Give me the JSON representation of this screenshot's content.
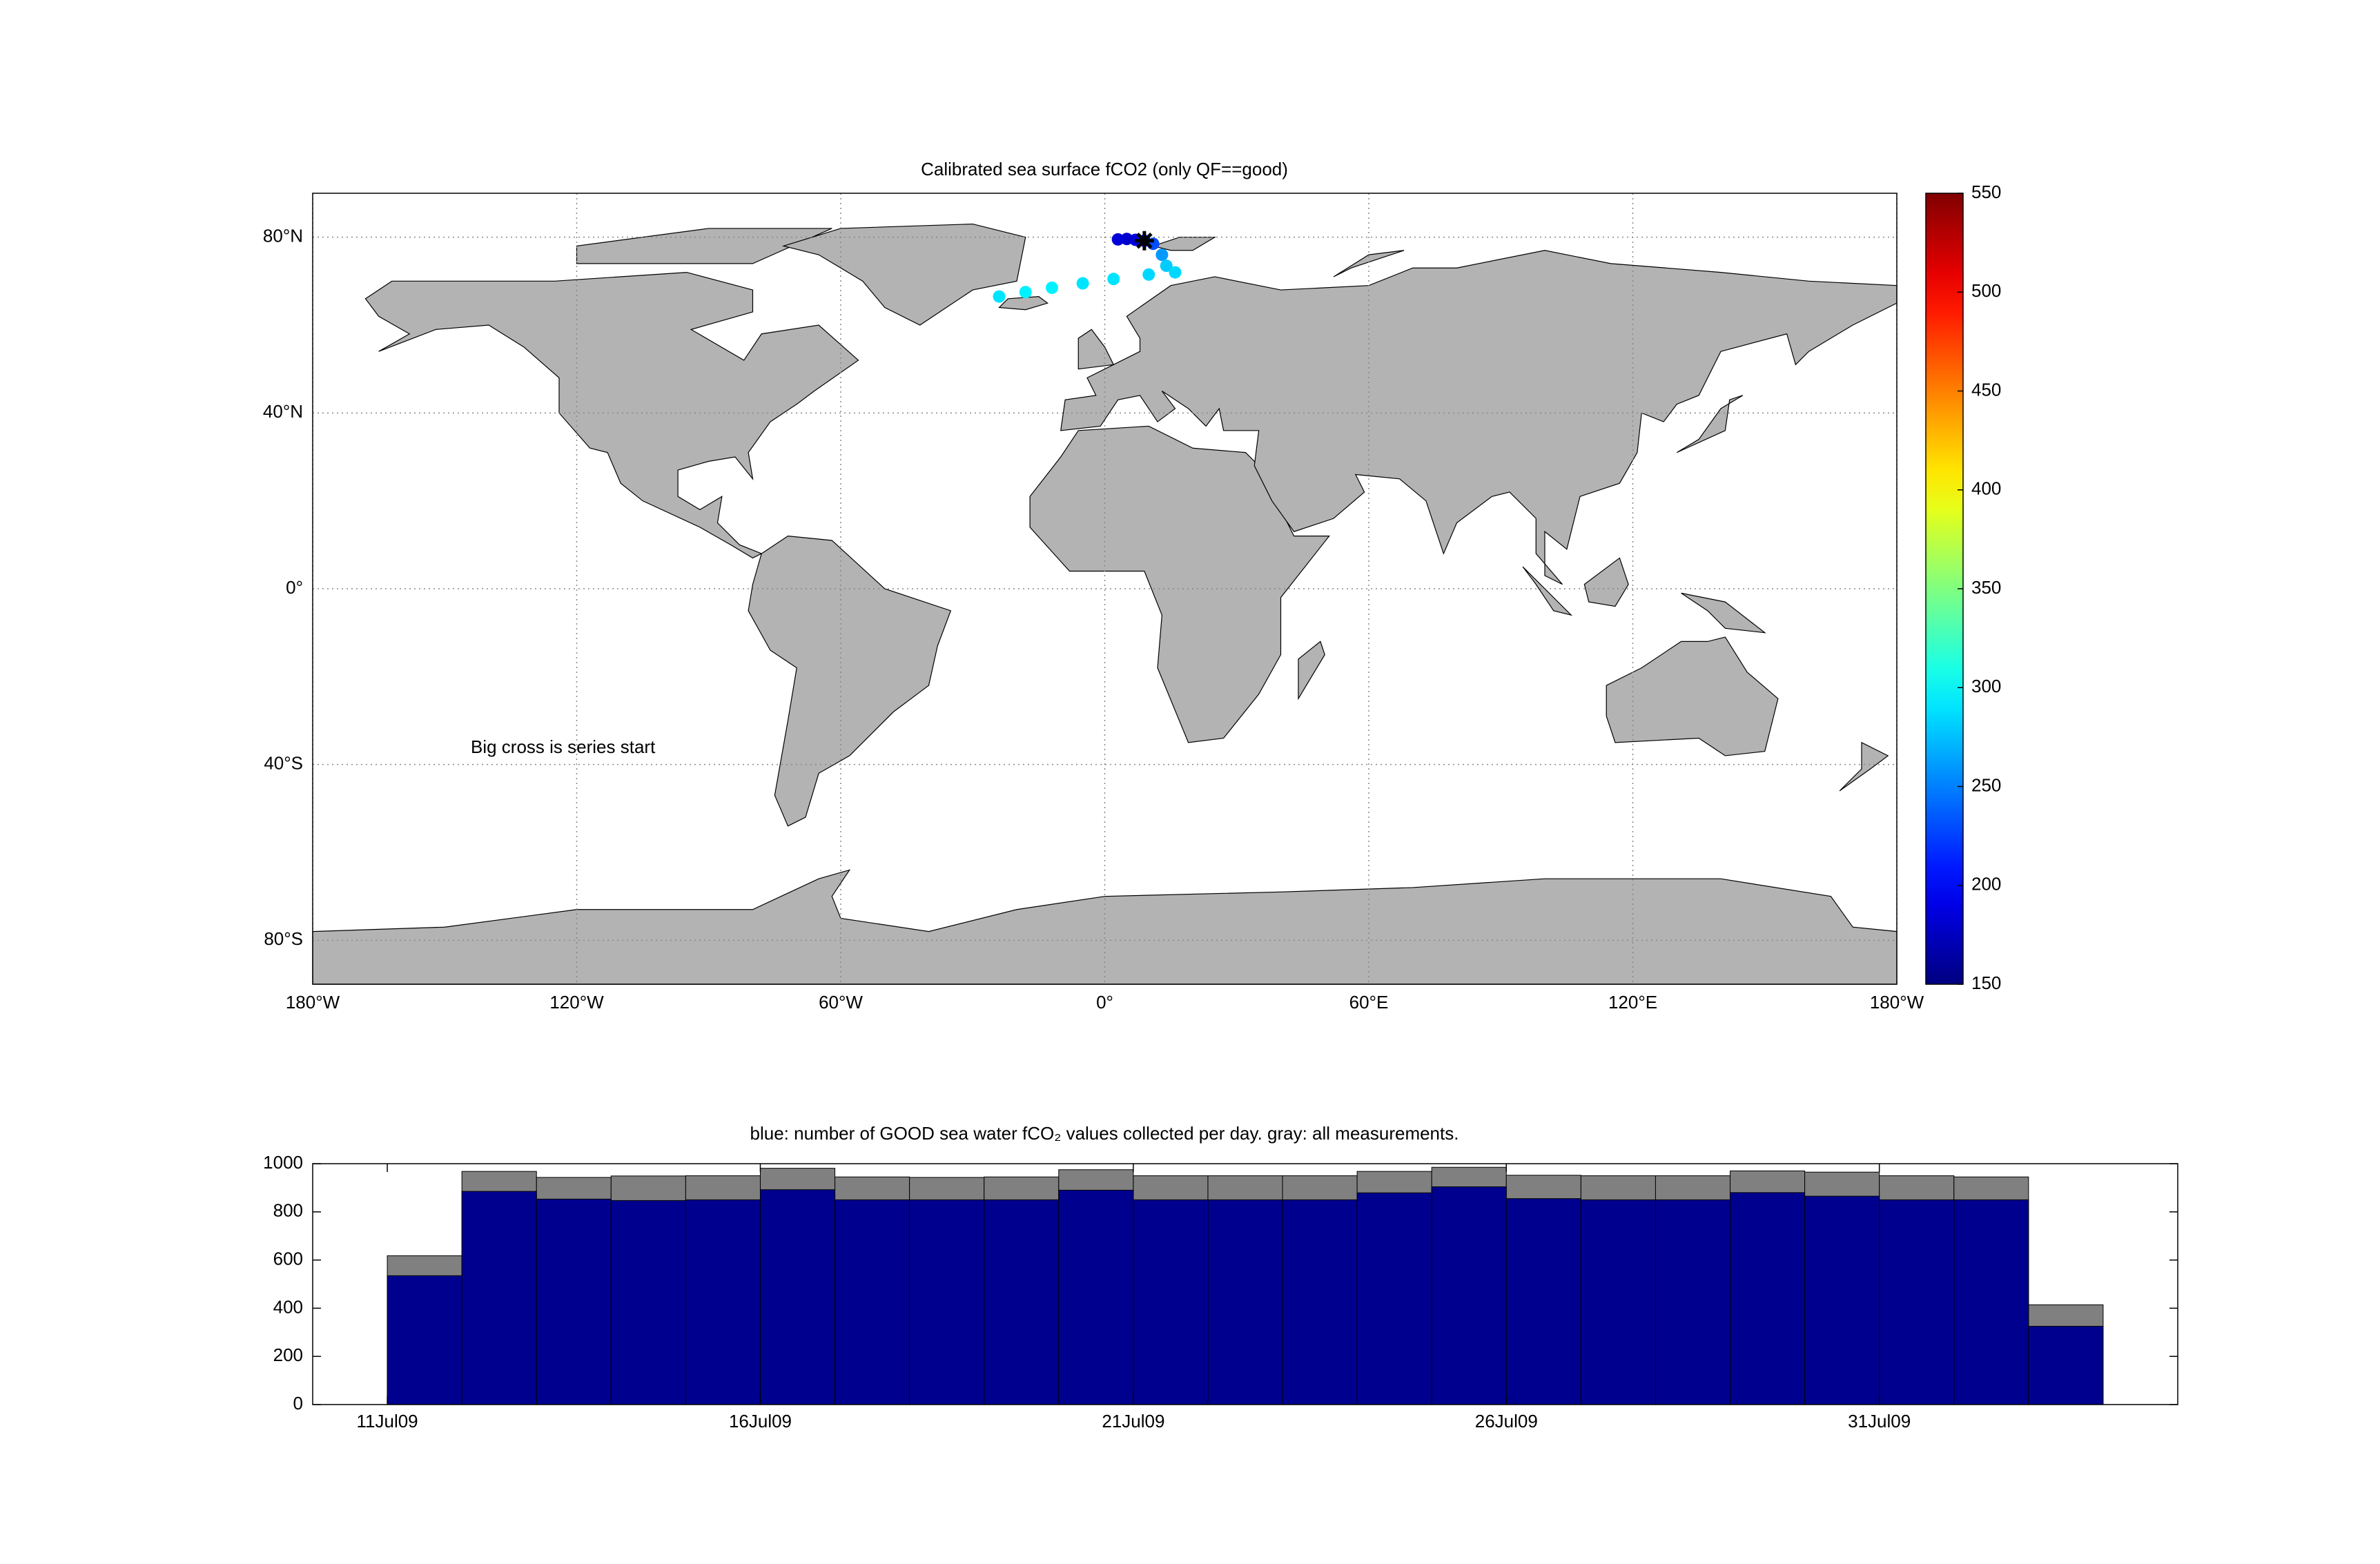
{
  "chart_data": [
    {
      "type": "map",
      "title": "Calibrated sea surface fCO2 (only QF==good)",
      "annotation": "Big cross is series start",
      "xlim": [
        -180,
        180
      ],
      "ylim": [
        -90,
        90
      ],
      "xticks": [
        {
          "value": -180,
          "label": "180°W"
        },
        {
          "value": -120,
          "label": "120°W"
        },
        {
          "value": -60,
          "label": "60°W"
        },
        {
          "value": 0,
          "label": "0°"
        },
        {
          "value": 60,
          "label": "60°E"
        },
        {
          "value": 120,
          "label": "120°E"
        },
        {
          "value": 180,
          "label": "180°W"
        }
      ],
      "yticks": [
        {
          "value": -80,
          "label": "80°S"
        },
        {
          "value": -40,
          "label": "40°S"
        },
        {
          "value": 0,
          "label": "0°"
        },
        {
          "value": 40,
          "label": "40°N"
        },
        {
          "value": 80,
          "label": "80°N"
        }
      ],
      "grid": true,
      "land_color": "#b3b3b3",
      "x": [
        9,
        7,
        5,
        3,
        11,
        13,
        14,
        16,
        10,
        2,
        -5,
        -12,
        -18,
        -24
      ],
      "y": [
        79.2,
        79.4,
        79.6,
        79.5,
        78.5,
        76,
        73.5,
        72,
        71.5,
        70.5,
        69.5,
        68.5,
        67.5,
        66.5
      ],
      "values": [
        200,
        190,
        180,
        185,
        230,
        260,
        280,
        285,
        285,
        290,
        290,
        295,
        295,
        290
      ],
      "colorbar": {
        "lim": [
          150,
          550
        ],
        "ticks": [
          150,
          200,
          250,
          300,
          350,
          400,
          450,
          500,
          550
        ],
        "colormap": "jet"
      }
    },
    {
      "type": "bar",
      "title": "blue: number of GOOD sea water fCO₂ values collected per day. gray: all measurements.",
      "x": [
        "2009-07-11",
        "2009-07-12",
        "2009-07-13",
        "2009-07-14",
        "2009-07-15",
        "2009-07-16",
        "2009-07-17",
        "2009-07-18",
        "2009-07-19",
        "2009-07-20",
        "2009-07-21",
        "2009-07-22",
        "2009-07-23",
        "2009-07-24",
        "2009-07-25",
        "2009-07-26",
        "2009-07-27",
        "2009-07-28",
        "2009-07-29",
        "2009-07-30",
        "2009-07-31",
        "2009-08-01",
        "2009-08-02"
      ],
      "series": [
        {
          "color": "#808080",
          "values": [
            618,
            968,
            943,
            949,
            950,
            981,
            945,
            943,
            945,
            975,
            950,
            950,
            950,
            968,
            985,
            952,
            950,
            950,
            970,
            965,
            950,
            945,
            414
          ]
        },
        {
          "color": "#00008f",
          "values": [
            535,
            885,
            853,
            847,
            850,
            892,
            850,
            850,
            850,
            890,
            850,
            850,
            850,
            879,
            904,
            855,
            850,
            850,
            880,
            865,
            850,
            850,
            325
          ]
        }
      ],
      "xlim": [
        "2009-07-10",
        "2009-08-04"
      ],
      "xticks": [
        {
          "value": "2009-07-11",
          "label": "11Jul09"
        },
        {
          "value": "2009-07-16",
          "label": "16Jul09"
        },
        {
          "value": "2009-07-21",
          "label": "21Jul09"
        },
        {
          "value": "2009-07-26",
          "label": "26Jul09"
        },
        {
          "value": "2009-07-31",
          "label": "31Jul09"
        }
      ],
      "ylim": [
        0,
        1000
      ],
      "yticks": [
        0,
        200,
        400,
        600,
        800,
        1000
      ]
    }
  ]
}
